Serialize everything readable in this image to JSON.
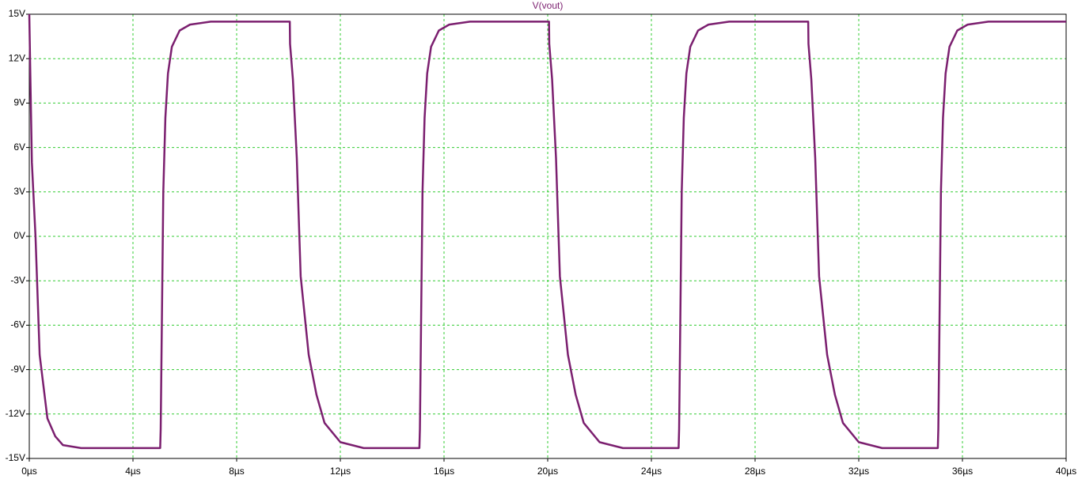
{
  "chart_data": {
    "type": "line",
    "title": "V(vout)",
    "x": [
      0,
      0.1,
      0.24,
      0.4,
      0.7,
      1.0,
      1.3,
      2.0,
      5.05,
      5.07,
      5.12,
      5.17,
      5.25,
      5.35,
      5.5,
      5.8,
      6.2,
      7,
      10.05,
      10.06,
      10.17,
      10.32,
      10.47,
      10.78,
      11.08,
      11.39,
      12,
      12.9,
      15.05,
      15.07,
      15.12,
      15.17,
      15.25,
      15.35,
      15.5,
      15.8,
      16.2,
      17,
      20.05,
      20.06,
      20.17,
      20.32,
      20.47,
      20.78,
      21.08,
      21.39,
      22,
      22.9,
      25.05,
      25.07,
      25.12,
      25.17,
      25.25,
      25.35,
      25.5,
      25.8,
      26.2,
      27,
      30.05,
      30.06,
      30.17,
      30.32,
      30.47,
      30.78,
      31.08,
      31.39,
      32,
      32.9,
      35.05,
      35.07,
      35.12,
      35.17,
      35.25,
      35.35,
      35.5,
      35.8,
      36.2,
      37,
      40
    ],
    "series": [
      {
        "name": "V(vout)",
        "color": "#7b1f6f",
        "values": [
          15,
          5,
          0,
          -8,
          -12.3,
          -13.5,
          -14.1,
          -14.3,
          -14.3,
          -13,
          -5,
          3,
          8,
          11,
          12.8,
          13.9,
          14.3,
          14.5,
          14.5,
          13,
          10.6,
          5.3,
          -2.7,
          -8,
          -10.7,
          -12.6,
          -13.9,
          -14.3,
          -14.3,
          -13,
          -5,
          3,
          8,
          11,
          12.8,
          13.9,
          14.3,
          14.5,
          14.5,
          13,
          10.6,
          5.3,
          -2.7,
          -8,
          -10.7,
          -12.6,
          -13.9,
          -14.3,
          -14.3,
          -13,
          -5,
          3,
          8,
          11,
          12.8,
          13.9,
          14.3,
          14.5,
          14.5,
          13,
          10.6,
          5.3,
          -2.7,
          -8,
          -10.7,
          -12.6,
          -13.9,
          -14.3,
          -14.3,
          -13,
          -5,
          3,
          8,
          11,
          12.8,
          13.9,
          14.3,
          14.5,
          14.5
        ]
      }
    ],
    "xlim": [
      0,
      40
    ],
    "xticks": [
      {
        "value": 0,
        "label": "0µs"
      },
      {
        "value": 4,
        "label": "4µs"
      },
      {
        "value": 8,
        "label": "8µs"
      },
      {
        "value": 12,
        "label": "12µs"
      },
      {
        "value": 16,
        "label": "16µs"
      },
      {
        "value": 20,
        "label": "20µs"
      },
      {
        "value": 24,
        "label": "24µs"
      },
      {
        "value": 28,
        "label": "28µs"
      },
      {
        "value": 32,
        "label": "32µs"
      },
      {
        "value": 36,
        "label": "36µs"
      },
      {
        "value": 40,
        "label": "40µs"
      }
    ],
    "ylim": [
      -15,
      15
    ],
    "yticks": [
      {
        "value": -15,
        "label": "-15V"
      },
      {
        "value": -12,
        "label": "-12V"
      },
      {
        "value": -9,
        "label": "-9V"
      },
      {
        "value": -6,
        "label": "-6V"
      },
      {
        "value": -3,
        "label": "-3V"
      },
      {
        "value": 0,
        "label": "0V"
      },
      {
        "value": 3,
        "label": "3V"
      },
      {
        "value": 6,
        "label": "6V"
      },
      {
        "value": 9,
        "label": "9V"
      },
      {
        "value": 12,
        "label": "12V"
      },
      {
        "value": 15,
        "label": "15V"
      }
    ],
    "grid": true
  }
}
